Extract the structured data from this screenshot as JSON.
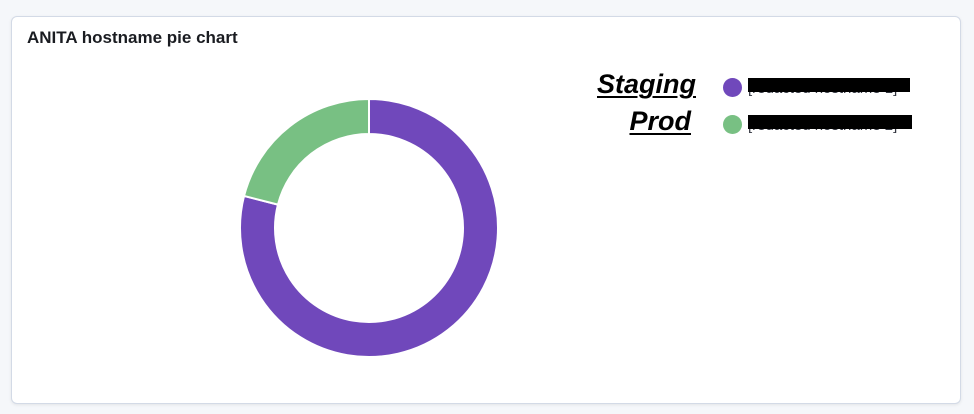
{
  "panel": {
    "title": "ANITA hostname pie chart"
  },
  "annotations": {
    "top_label": "Staging",
    "bottom_label": "Prod"
  },
  "chart_data": {
    "type": "pie",
    "donut": true,
    "title": "",
    "slices": [
      {
        "label": "[redacted hostname 1]",
        "value": 0.79,
        "color": "#7048bb"
      },
      {
        "label": "[redacted hostname 2]",
        "value": 0.21,
        "color": "#78c083"
      }
    ],
    "legend_position": "top-right",
    "legend_redacted": true
  },
  "colors": {
    "panel_border": "#d3dae6",
    "redaction": "#000000",
    "slice_separator": "#ffffff"
  }
}
